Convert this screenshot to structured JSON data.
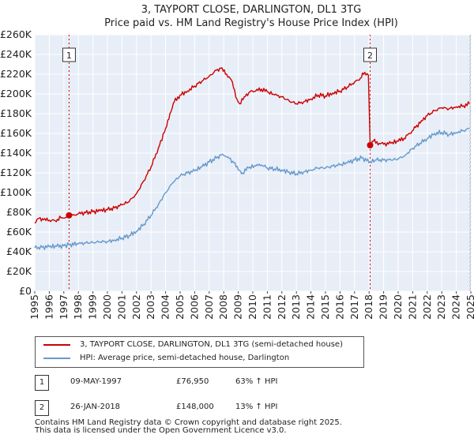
{
  "chart_data": {
    "type": "line",
    "title": "3, TAYPORT CLOSE, DARLINGTON, DL1 3TG",
    "subtitle": "Price paid vs. HM Land Registry's House Price Index (HPI)",
    "xlabel": "",
    "ylabel": "",
    "xlim": [
      1995,
      2025
    ],
    "ylim": [
      0,
      260000
    ],
    "x_ticks": [
      "1995",
      "1996",
      "1997",
      "1998",
      "1999",
      "2000",
      "2001",
      "2002",
      "2003",
      "2004",
      "2005",
      "2006",
      "2007",
      "2008",
      "2009",
      "2010",
      "2011",
      "2012",
      "2013",
      "2014",
      "2015",
      "2016",
      "2017",
      "2018",
      "2019",
      "2020",
      "2021",
      "2022",
      "2023",
      "2024",
      "2025"
    ],
    "y_ticks": [
      {
        "value": 0,
        "label": "£0"
      },
      {
        "value": 20000,
        "label": "£20K"
      },
      {
        "value": 40000,
        "label": "£40K"
      },
      {
        "value": 60000,
        "label": "£60K"
      },
      {
        "value": 80000,
        "label": "£80K"
      },
      {
        "value": 100000,
        "label": "£100K"
      },
      {
        "value": 120000,
        "label": "£120K"
      },
      {
        "value": 140000,
        "label": "£140K"
      },
      {
        "value": 160000,
        "label": "£160K"
      },
      {
        "value": 180000,
        "label": "£180K"
      },
      {
        "value": 200000,
        "label": "£200K"
      },
      {
        "value": 220000,
        "label": "£220K"
      },
      {
        "value": 240000,
        "label": "£240K"
      },
      {
        "value": 260000,
        "label": "£260K"
      }
    ],
    "series": [
      {
        "name": "3, TAYPORT CLOSE, DARLINGTON, DL1 3TG (semi-detached house)",
        "color": "#cc0000",
        "points": [
          [
            1995.0,
            69000
          ],
          [
            1995.3,
            74000
          ],
          [
            1995.6,
            72500
          ],
          [
            1996.0,
            72000
          ],
          [
            1996.4,
            71500
          ],
          [
            1996.8,
            74500
          ],
          [
            1997.0,
            74000
          ],
          [
            1997.36,
            76950
          ],
          [
            1997.7,
            77500
          ],
          [
            1998.0,
            78500
          ],
          [
            1998.5,
            79500
          ],
          [
            1999.0,
            80500
          ],
          [
            1999.5,
            81500
          ],
          [
            2000.0,
            82500
          ],
          [
            2000.5,
            84500
          ],
          [
            2001.0,
            87500
          ],
          [
            2001.5,
            91000
          ],
          [
            2002.0,
            99000
          ],
          [
            2002.5,
            112000
          ],
          [
            2003.0,
            126000
          ],
          [
            2003.5,
            145000
          ],
          [
            2004.0,
            165000
          ],
          [
            2004.3,
            180000
          ],
          [
            2004.6,
            192000
          ],
          [
            2005.0,
            199000
          ],
          [
            2005.5,
            203000
          ],
          [
            2006.0,
            208000
          ],
          [
            2006.5,
            213000
          ],
          [
            2007.0,
            218000
          ],
          [
            2007.5,
            224000
          ],
          [
            2007.8,
            226000
          ],
          [
            2008.2,
            220000
          ],
          [
            2008.6,
            212000
          ],
          [
            2008.9,
            195000
          ],
          [
            2009.1,
            190000
          ],
          [
            2009.4,
            197000
          ],
          [
            2009.8,
            202000
          ],
          [
            2010.2,
            203000
          ],
          [
            2010.6,
            205000
          ],
          [
            2011.0,
            202000
          ],
          [
            2011.5,
            199000
          ],
          [
            2012.0,
            197000
          ],
          [
            2012.5,
            193000
          ],
          [
            2013.0,
            190000
          ],
          [
            2013.5,
            192000
          ],
          [
            2014.0,
            195000
          ],
          [
            2014.5,
            199000
          ],
          [
            2015.0,
            198000
          ],
          [
            2015.5,
            201000
          ],
          [
            2016.0,
            203000
          ],
          [
            2016.5,
            207000
          ],
          [
            2017.0,
            212000
          ],
          [
            2017.4,
            216000
          ],
          [
            2017.7,
            222000
          ],
          [
            2017.95,
            219000
          ],
          [
            2018.07,
            148000
          ],
          [
            2018.3,
            152000
          ],
          [
            2018.7,
            150000
          ],
          [
            2019.0,
            149000
          ],
          [
            2019.5,
            150000
          ],
          [
            2020.0,
            152000
          ],
          [
            2020.4,
            155000
          ],
          [
            2020.8,
            160000
          ],
          [
            2021.2,
            166000
          ],
          [
            2021.6,
            173000
          ],
          [
            2022.0,
            178000
          ],
          [
            2022.5,
            183000
          ],
          [
            2023.0,
            186000
          ],
          [
            2023.5,
            185000
          ],
          [
            2024.0,
            187000
          ],
          [
            2024.5,
            188000
          ],
          [
            2024.9,
            190000
          ]
        ]
      },
      {
        "name": "HPI: Average price, semi-detached house, Darlington",
        "color": "#6699cc",
        "points": [
          [
            1995.0,
            44000
          ],
          [
            1995.5,
            44500
          ],
          [
            1996.0,
            45000
          ],
          [
            1996.5,
            45500
          ],
          [
            1997.0,
            46000
          ],
          [
            1997.36,
            47000
          ],
          [
            1998.0,
            48000
          ],
          [
            1998.5,
            49000
          ],
          [
            1999.0,
            49500
          ],
          [
            1999.5,
            50000
          ],
          [
            2000.0,
            50500
          ],
          [
            2000.5,
            52000
          ],
          [
            2001.0,
            54000
          ],
          [
            2001.5,
            56500
          ],
          [
            2002.0,
            61000
          ],
          [
            2002.5,
            68000
          ],
          [
            2003.0,
            77000
          ],
          [
            2003.5,
            88000
          ],
          [
            2004.0,
            100000
          ],
          [
            2004.5,
            110000
          ],
          [
            2005.0,
            117000
          ],
          [
            2005.5,
            120000
          ],
          [
            2006.0,
            122000
          ],
          [
            2006.5,
            126000
          ],
          [
            2007.0,
            131000
          ],
          [
            2007.5,
            135000
          ],
          [
            2007.9,
            139000
          ],
          [
            2008.3,
            136000
          ],
          [
            2008.7,
            130000
          ],
          [
            2009.0,
            123000
          ],
          [
            2009.3,
            120000
          ],
          [
            2009.7,
            125000
          ],
          [
            2010.2,
            127000
          ],
          [
            2010.6,
            128000
          ],
          [
            2011.0,
            125000
          ],
          [
            2011.5,
            124000
          ],
          [
            2012.0,
            123000
          ],
          [
            2012.5,
            121000
          ],
          [
            2013.0,
            119000
          ],
          [
            2013.5,
            121000
          ],
          [
            2014.0,
            123000
          ],
          [
            2014.5,
            125000
          ],
          [
            2015.0,
            125000
          ],
          [
            2015.5,
            127000
          ],
          [
            2016.0,
            128000
          ],
          [
            2016.5,
            130000
          ],
          [
            2017.0,
            133000
          ],
          [
            2017.5,
            135000
          ],
          [
            2018.07,
            131000
          ],
          [
            2018.5,
            133000
          ],
          [
            2019.0,
            133000
          ],
          [
            2019.5,
            133000
          ],
          [
            2020.0,
            134000
          ],
          [
            2020.5,
            138000
          ],
          [
            2021.0,
            145000
          ],
          [
            2021.5,
            150000
          ],
          [
            2022.0,
            155000
          ],
          [
            2022.5,
            160000
          ],
          [
            2023.0,
            161000
          ],
          [
            2023.5,
            159000
          ],
          [
            2024.0,
            161000
          ],
          [
            2024.5,
            163000
          ],
          [
            2024.9,
            165000
          ]
        ]
      }
    ],
    "sales": [
      {
        "label": "1",
        "x": 1997.36,
        "y": 76950
      },
      {
        "label": "2",
        "x": 2018.07,
        "y": 148000
      }
    ]
  },
  "legend": {
    "property_label": "3, TAYPORT CLOSE, DARLINGTON, DL1 3TG (semi-detached house)",
    "hpi_label": "HPI: Average price, semi-detached house, Darlington",
    "property_color": "#cc0000",
    "hpi_color": "#6699cc"
  },
  "sales_table": [
    {
      "num": "1",
      "date": "09-MAY-1997",
      "price": "£76,950",
      "hpi": "63% ↑ HPI"
    },
    {
      "num": "2",
      "date": "26-JAN-2018",
      "price": "£148,000",
      "hpi": "13% ↑ HPI"
    }
  ],
  "footer": {
    "line1": "Contains HM Land Registry data © Crown copyright and database right 2025.",
    "line2": "This data is licensed under the Open Government Licence v3.0."
  },
  "colors": {
    "plot_bg": "#e8eef7",
    "grid": "#ffffff",
    "sale_marker": "#cc0000",
    "vline": "#cc0000"
  }
}
